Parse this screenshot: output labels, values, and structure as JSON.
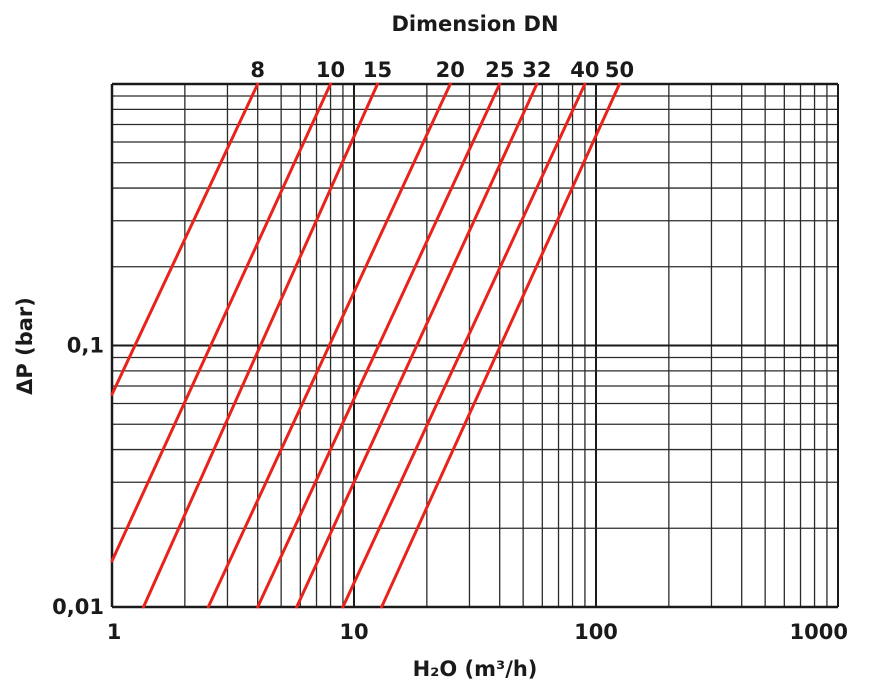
{
  "chart_data": {
    "type": "line",
    "title": "Dimension DN",
    "xlabel": "H₂O (m³/h)",
    "ylabel": "ΔP (bar)",
    "x_scale": "log",
    "y_scale": "log",
    "xlim": [
      1,
      1000
    ],
    "ylim": [
      0.01,
      1
    ],
    "x_tick_labels": [
      "1",
      "10",
      "100",
      "1000"
    ],
    "x_ticks": [
      1,
      10,
      100,
      1000
    ],
    "y_tick_labels": [
      "0,01",
      "0,1"
    ],
    "y_ticks": [
      0.01,
      0.1
    ],
    "grid": true,
    "series": [
      {
        "name": "8",
        "x": [
          1,
          4.0
        ],
        "y": [
          0.065,
          1
        ]
      },
      {
        "name": "10",
        "x": [
          1,
          8.0
        ],
        "y": [
          0.015,
          1
        ]
      },
      {
        "name": "15",
        "x": [
          1.35,
          12.5
        ],
        "y": [
          0.01,
          1
        ]
      },
      {
        "name": "20",
        "x": [
          2.5,
          25
        ],
        "y": [
          0.01,
          1
        ]
      },
      {
        "name": "25",
        "x": [
          4.0,
          40
        ],
        "y": [
          0.01,
          1
        ]
      },
      {
        "name": "32",
        "x": [
          5.8,
          57
        ],
        "y": [
          0.01,
          1
        ]
      },
      {
        "name": "40",
        "x": [
          9.0,
          90
        ],
        "y": [
          0.01,
          1
        ]
      },
      {
        "name": "50",
        "x": [
          13,
          125
        ],
        "y": [
          0.01,
          1
        ]
      }
    ],
    "colors": {
      "curve": "#e8231c",
      "grid": "#2b2b2b"
    }
  }
}
